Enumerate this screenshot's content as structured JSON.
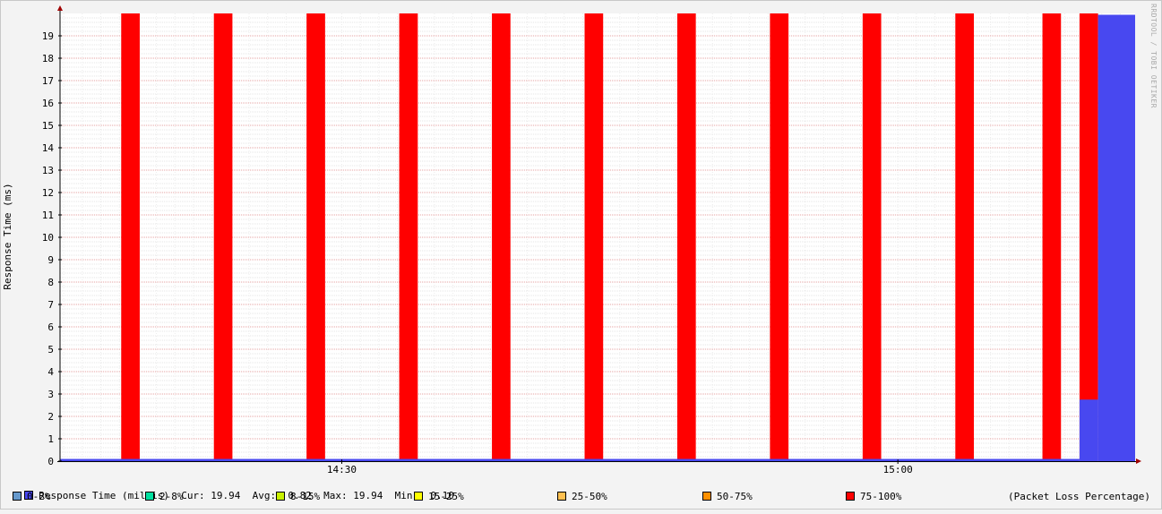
{
  "chart_data": {
    "type": "area",
    "ylabel": "Response Time (ms)",
    "ylim": [
      0,
      20
    ],
    "yticks": [
      0,
      1,
      2,
      3,
      4,
      5,
      6,
      7,
      8,
      9,
      10,
      11,
      12,
      13,
      14,
      15,
      16,
      17,
      18,
      19
    ],
    "x_tick_labels": [
      "14:30",
      "15:00"
    ],
    "x_tick_minutes": [
      30,
      60
    ],
    "xlim_minutes": [
      14.8,
      72.8
    ],
    "grid": true,
    "series": [
      {
        "name": "Response Time (millis)",
        "color": "#4848f0",
        "segments": [
          {
            "x0": 14.8,
            "x1": 69.8,
            "value": 0.1
          },
          {
            "x0": 69.8,
            "x1": 70.8,
            "value": 2.75
          },
          {
            "x0": 70.8,
            "x1": 72.8,
            "value": 19.94
          }
        ]
      },
      {
        "name": "75-100%",
        "color": "#ff0000",
        "bands": [
          [
            18.1,
            19.1
          ],
          [
            23.1,
            24.1
          ],
          [
            28.1,
            29.1
          ],
          [
            33.1,
            34.1
          ],
          [
            38.1,
            39.1
          ],
          [
            43.1,
            44.1
          ],
          [
            48.1,
            49.1
          ],
          [
            53.1,
            54.1
          ],
          [
            58.1,
            59.1
          ],
          [
            63.1,
            64.1
          ],
          [
            67.8,
            68.8
          ],
          [
            69.8,
            70.8
          ]
        ]
      }
    ],
    "stats": {
      "cur": "19.94",
      "avg": "0.82",
      "max": "19.94",
      "min": "0.10"
    }
  },
  "legend": {
    "response_line": "Response Time (millis)  Cur: 19.94  Avg:  0.82  Max: 19.94  Min:  0.10",
    "response_color": "#4848f0",
    "loss_items": [
      {
        "label": "0-2%",
        "color": "#6699cc"
      },
      {
        "label": "2-8%",
        "color": "#00e0a0"
      },
      {
        "label": "8-15%",
        "color": "#c8f000"
      },
      {
        "label": "15-25%",
        "color": "#ffff00"
      },
      {
        "label": "25-50%",
        "color": "#ffc050"
      },
      {
        "label": "50-75%",
        "color": "#ff9000"
      },
      {
        "label": "75-100%",
        "color": "#ff0000"
      }
    ],
    "loss_note": "(Packet Loss Percentage)"
  },
  "watermark": "RRDTOOL / TOBI OETIKER"
}
